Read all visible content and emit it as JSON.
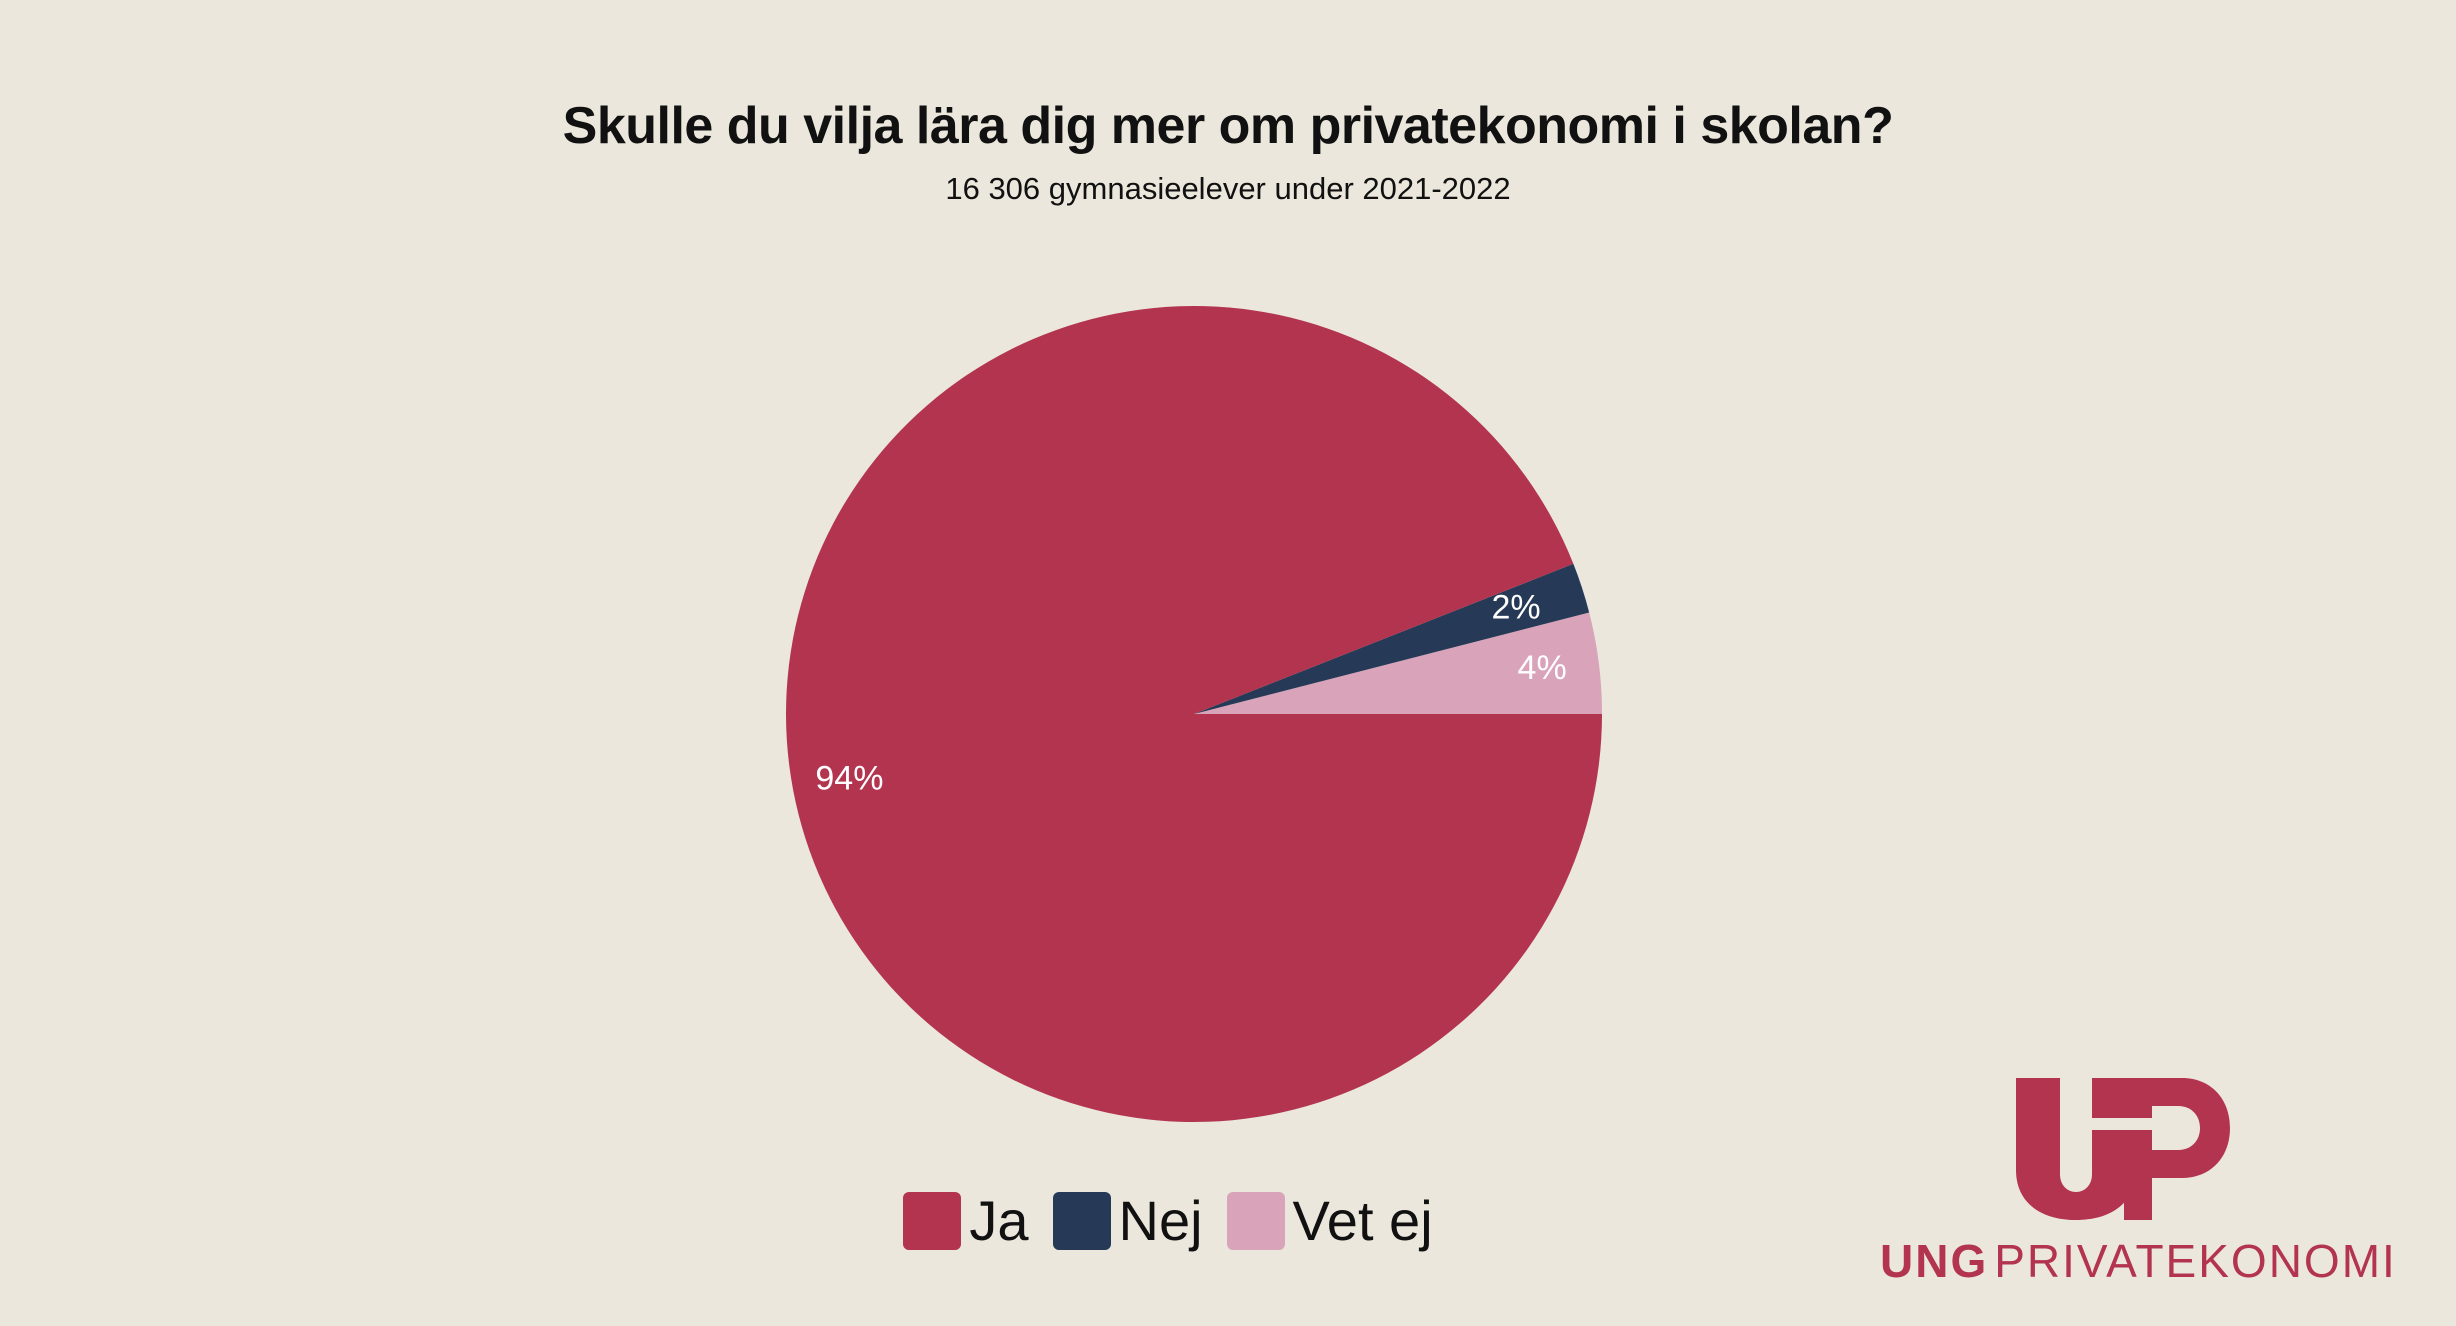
{
  "chart_data": {
    "type": "pie",
    "title": "Skulle du vilja lära dig mer om privatekonomi i skolan?",
    "subtitle": "16 306 gymnasieelever under 2021-2022",
    "categories": [
      "Ja",
      "Nej",
      "Vet ej"
    ],
    "values": [
      94,
      2,
      4
    ],
    "value_labels": [
      "94%",
      "2%",
      "4%"
    ],
    "colors": [
      "#b3344f",
      "#263a57",
      "#d9a3ba"
    ],
    "legend_position": "bottom"
  },
  "logo": {
    "mark_text": "UP",
    "brand_bold": "UNG",
    "brand_rest": "PRIVATEKONOMI",
    "color": "#b3344f"
  }
}
